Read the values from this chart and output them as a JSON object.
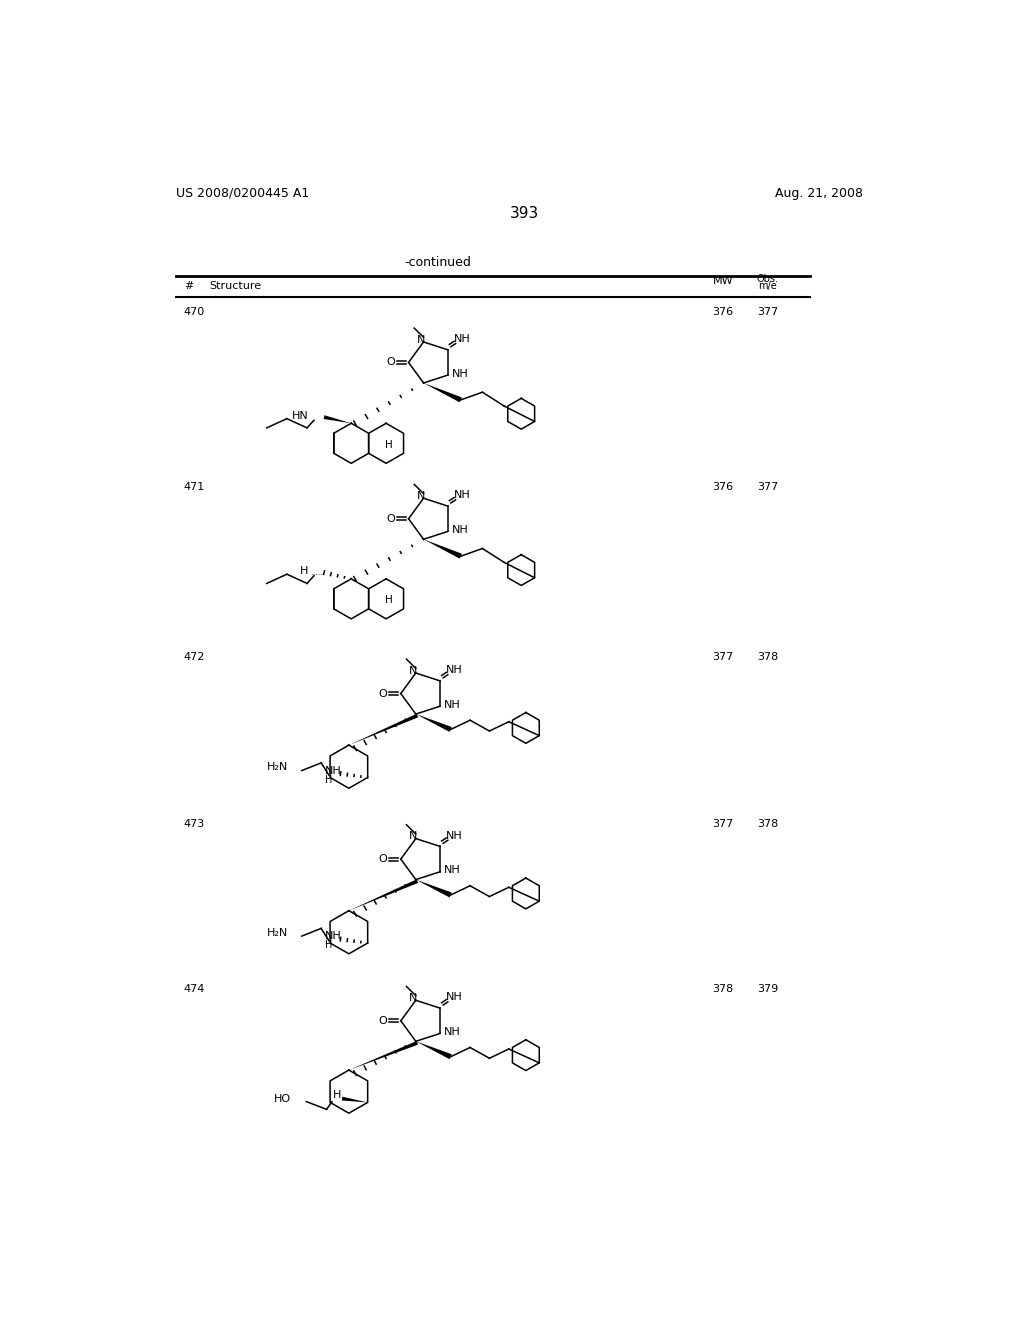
{
  "page_patent_number": "US 2008/0200445 A1",
  "page_date": "Aug. 21, 2008",
  "page_number": "393",
  "continued_label": "-continued",
  "compounds": [
    {
      "id": "470",
      "mw": "376",
      "obs": "377"
    },
    {
      "id": "471",
      "mw": "376",
      "obs": "377"
    },
    {
      "id": "472",
      "mw": "377",
      "obs": "378"
    },
    {
      "id": "473",
      "mw": "377",
      "obs": "378"
    },
    {
      "id": "474",
      "mw": "378",
      "obs": "379"
    }
  ],
  "background_color": "#ffffff"
}
